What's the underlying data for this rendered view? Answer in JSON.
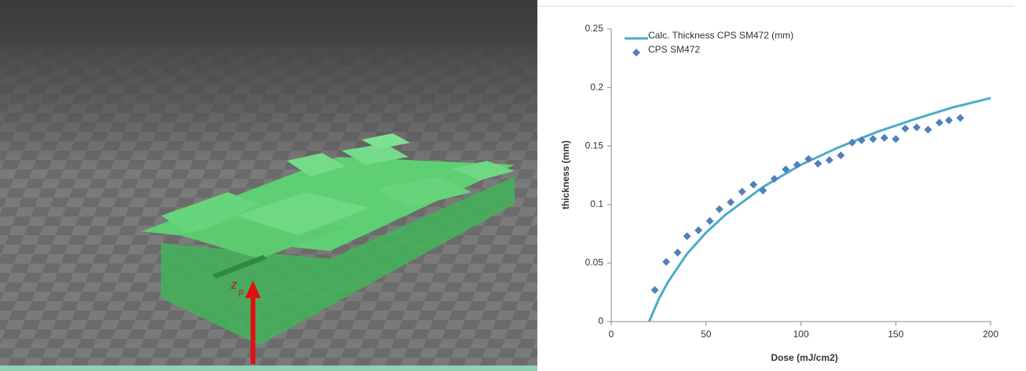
{
  "render": {
    "axis_label": "z",
    "axis_subscript": "p"
  },
  "chart_data": {
    "type": "scatter",
    "xlabel": "Dose (mJ/cm2)",
    "ylabel": "thickness (mm)",
    "xlim": [
      0,
      200
    ],
    "xticks": [
      0,
      50,
      100,
      150,
      200
    ],
    "ylim": [
      0,
      0.25
    ],
    "yticks": [
      0,
      0.05,
      0.1,
      0.15,
      0.2,
      0.25
    ],
    "grid": false,
    "legend": "top-left",
    "series": [
      {
        "name": "Calc. Thickness CPS SM472 (mm)",
        "type": "line",
        "color": "#4bacc6",
        "x": [
          20,
          25,
          30,
          40,
          50,
          60,
          80,
          100,
          120,
          140,
          160,
          180,
          200
        ],
        "values": [
          0,
          0.019,
          0.034,
          0.058,
          0.076,
          0.091,
          0.115,
          0.134,
          0.149,
          0.162,
          0.173,
          0.183,
          0.191
        ]
      },
      {
        "name": "CPS SM472",
        "type": "marker",
        "color": "#4f81bd",
        "x": [
          23,
          29,
          35,
          40,
          46,
          52,
          57,
          63,
          69,
          75,
          80,
          86,
          92,
          98,
          104,
          109,
          115,
          121,
          127,
          132,
          138,
          144,
          150,
          155,
          161,
          167,
          173,
          178,
          184
        ],
        "values": [
          0.027,
          0.051,
          0.059,
          0.073,
          0.078,
          0.086,
          0.096,
          0.102,
          0.111,
          0.117,
          0.112,
          0.122,
          0.13,
          0.134,
          0.139,
          0.135,
          0.138,
          0.142,
          0.153,
          0.155,
          0.156,
          0.157,
          0.156,
          0.165,
          0.166,
          0.164,
          0.17,
          0.172,
          0.174
        ]
      }
    ]
  }
}
